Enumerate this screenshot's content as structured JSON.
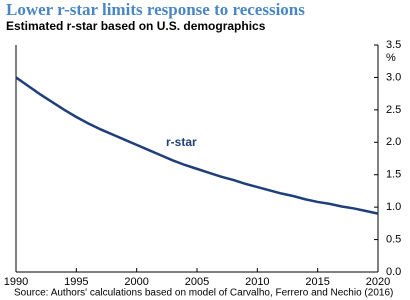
{
  "chart_data": {
    "type": "line",
    "title": "Lower r-star limits response to recessions",
    "subtitle": "Estimated r-star based on U.S. demographics",
    "y_axis_label": "%",
    "annotation": "r-star",
    "source": "Source: Authors' calculations based on model of Carvalho, Ferrero and Nechio (2016)",
    "x": [
      1990,
      1991,
      1992,
      1993,
      1994,
      1995,
      1996,
      1997,
      1998,
      1999,
      2000,
      2001,
      2002,
      2003,
      2004,
      2005,
      2006,
      2007,
      2008,
      2009,
      2010,
      2011,
      2012,
      2013,
      2014,
      2015,
      2016,
      2017,
      2018,
      2019,
      2020
    ],
    "series": [
      {
        "name": "r-star",
        "color": "#1f3f7a",
        "values": [
          3.0,
          2.87,
          2.74,
          2.62,
          2.5,
          2.39,
          2.29,
          2.2,
          2.12,
          2.04,
          1.96,
          1.88,
          1.8,
          1.72,
          1.65,
          1.59,
          1.53,
          1.47,
          1.42,
          1.36,
          1.31,
          1.26,
          1.21,
          1.17,
          1.12,
          1.08,
          1.05,
          1.01,
          0.98,
          0.94,
          0.9
        ]
      }
    ],
    "xlim": [
      1990,
      2020
    ],
    "xticks": [
      1990,
      1995,
      2000,
      2005,
      2010,
      2015,
      2020
    ],
    "ylim": [
      0,
      3.5
    ],
    "yticks": [
      {
        "value": 0,
        "label": "0.0"
      },
      0.5,
      {
        "value": 1,
        "label": "1.0"
      },
      1.5,
      {
        "value": 2,
        "label": "2.0"
      },
      2.5,
      {
        "value": 3,
        "label": "3.0"
      },
      3.5
    ]
  }
}
